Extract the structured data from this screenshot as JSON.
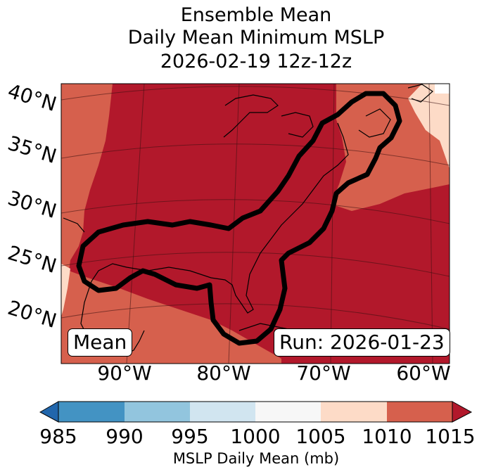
{
  "title": {
    "line1": "Ensemble Mean",
    "line2": "Daily Mean Minimum MSLP",
    "line3": "2026-02-19 12z-12z"
  },
  "lat_labels": [
    "40°N",
    "35°N",
    "30°N",
    "25°N",
    "20°N"
  ],
  "lon_labels": [
    "90°W",
    "80°W",
    "70°W",
    "60°W"
  ],
  "mean_label": "Mean",
  "run_label": "Run: 2026-01-23",
  "colorbar": {
    "label": "MSLP Daily Mean (mb)",
    "ticks": [
      "985",
      "990",
      "995",
      "1000",
      "1005",
      "1010",
      "1015"
    ],
    "colors": [
      "#2166ac",
      "#4393c3",
      "#92c5de",
      "#d1e5f0",
      "#f7f7f7",
      "#fddbc7",
      "#d6604d",
      "#b2182b"
    ]
  },
  "map_colors": {
    "c1015": "#b2182b",
    "c1010": "#d6604d",
    "c1005": "#fddbc7"
  }
}
